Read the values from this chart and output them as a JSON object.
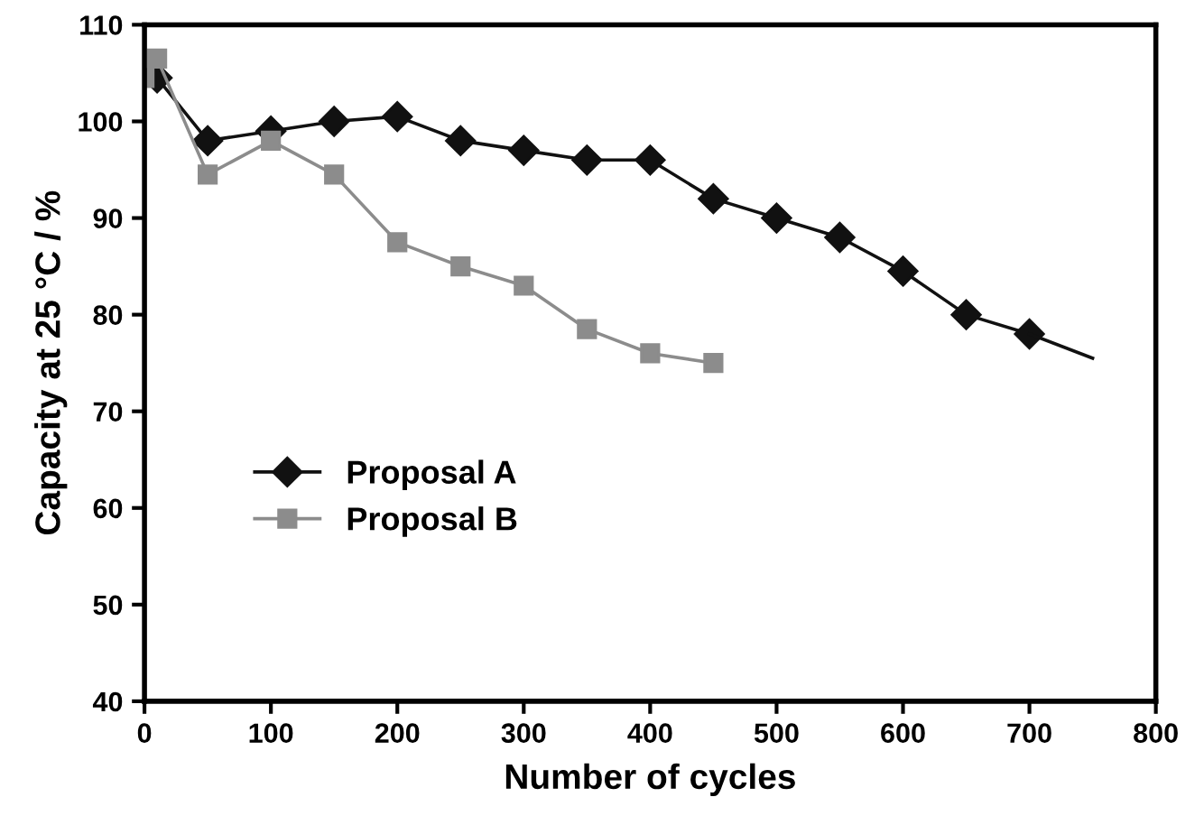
{
  "chart_data": {
    "type": "line",
    "xlabel": "Number of cycles",
    "ylabel": "Capacity at 25 °C / %",
    "xlim": [
      0,
      800
    ],
    "xticks": [
      0,
      100,
      200,
      300,
      400,
      500,
      600,
      700,
      800
    ],
    "ylim": [
      40,
      110
    ],
    "yticks": [
      40,
      50,
      60,
      70,
      80,
      90,
      100,
      110
    ],
    "grid": false,
    "legend": "left",
    "series": [
      {
        "name": "Proposal A",
        "color": "#111111",
        "marker": "diamond",
        "x": [
          10,
          50,
          100,
          150,
          200,
          250,
          300,
          350,
          400,
          450,
          500,
          550,
          600,
          650,
          700
        ],
        "values": [
          104.5,
          98,
          99,
          100,
          100.5,
          98,
          97,
          96,
          96,
          92,
          90,
          88,
          84.5,
          80,
          78
        ]
      },
      {
        "name": "Proposal B",
        "color": "#8c8c8c",
        "marker": "square",
        "x": [
          0,
          10,
          50,
          100,
          150,
          200,
          250,
          300,
          350,
          400,
          450
        ],
        "values": [
          104.5,
          106.5,
          94.5,
          98,
          94.5,
          87.5,
          85,
          83,
          78.5,
          76,
          75
        ]
      },
      {
        "color": "#111111",
        "marker": "none",
        "x": [
          700,
          750
        ],
        "values": [
          78,
          75.5
        ]
      }
    ]
  }
}
